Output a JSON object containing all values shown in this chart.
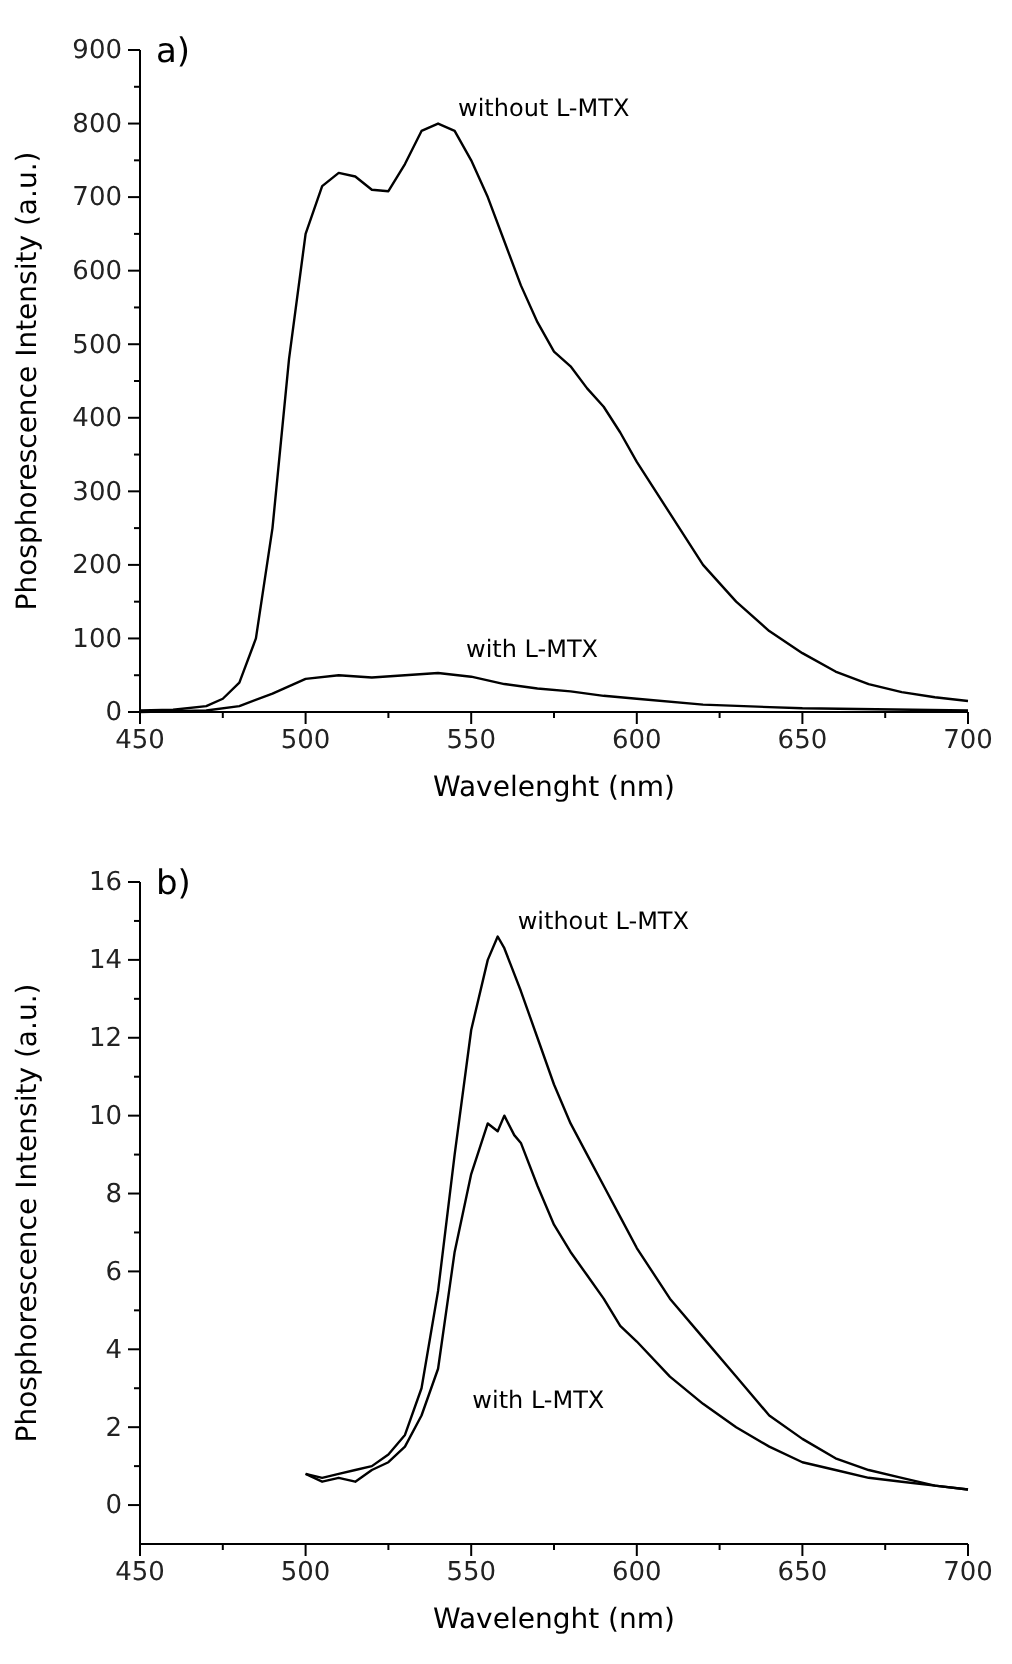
{
  "chart_data": [
    {
      "type": "line",
      "title": "a)",
      "xlabel": "Wavelenght (nm)",
      "ylabel": "Phosphorescence Intensity (a.u.)",
      "xlim": [
        450,
        700
      ],
      "ylim": [
        0,
        900
      ],
      "xticks": [
        450,
        {
          "value": 475,
          "label": null
        },
        500,
        {
          "value": 525,
          "label": null
        },
        550,
        {
          "value": 575,
          "label": null
        },
        600,
        {
          "value": 625,
          "label": null
        },
        650,
        {
          "value": 675,
          "label": null
        },
        700
      ],
      "yticks": [
        0,
        {
          "value": 50,
          "label": null
        },
        100,
        {
          "value": 150,
          "label": null
        },
        200,
        {
          "value": 250,
          "label": null
        },
        300,
        {
          "value": 350,
          "label": null
        },
        400,
        {
          "value": 450,
          "label": null
        },
        500,
        {
          "value": 550,
          "label": null
        },
        600,
        {
          "value": 650,
          "label": null
        },
        700,
        {
          "value": 750,
          "label": null
        },
        800,
        {
          "value": 850,
          "label": null
        },
        900
      ],
      "grid": false,
      "marker": "none",
      "line_style": "solid",
      "series": [
        {
          "name": "without L-MTX",
          "color": "#000000",
          "x": [
            450,
            460,
            470,
            475,
            480,
            485,
            490,
            495,
            500,
            505,
            510,
            515,
            520,
            525,
            530,
            535,
            540,
            545,
            550,
            555,
            560,
            565,
            570,
            575,
            580,
            585,
            590,
            595,
            600,
            610,
            620,
            630,
            640,
            650,
            660,
            670,
            680,
            690,
            700
          ],
          "values": [
            2,
            3,
            8,
            18,
            40,
            100,
            250,
            480,
            650,
            715,
            733,
            728,
            710,
            708,
            745,
            790,
            800,
            790,
            750,
            700,
            640,
            580,
            530,
            490,
            470,
            440,
            415,
            380,
            340,
            270,
            200,
            150,
            110,
            80,
            55,
            38,
            27,
            20,
            15
          ]
        },
        {
          "name": "with L-MTX",
          "color": "#000000",
          "x": [
            450,
            460,
            470,
            480,
            490,
            500,
            510,
            520,
            530,
            540,
            550,
            560,
            570,
            580,
            590,
            600,
            620,
            650,
            700
          ],
          "values": [
            0,
            1,
            2,
            8,
            25,
            45,
            50,
            47,
            50,
            53,
            48,
            38,
            32,
            28,
            22,
            18,
            10,
            5,
            2
          ]
        }
      ]
    },
    {
      "type": "line",
      "title": "b)",
      "xlabel": "Wavelenght (nm)",
      "ylabel": "Phosphorescence Intensity (a.u.)",
      "xlim": [
        450,
        700
      ],
      "ylim": [
        -1,
        16
      ],
      "xticks": [
        450,
        {
          "value": 475,
          "label": null
        },
        500,
        {
          "value": 525,
          "label": null
        },
        550,
        {
          "value": 575,
          "label": null
        },
        600,
        {
          "value": 625,
          "label": null
        },
        650,
        {
          "value": 675,
          "label": null
        },
        700
      ],
      "yticks": [
        0,
        {
          "value": 1,
          "label": null
        },
        2,
        {
          "value": 3,
          "label": null
        },
        4,
        {
          "value": 5,
          "label": null
        },
        6,
        {
          "value": 7,
          "label": null
        },
        8,
        {
          "value": 9,
          "label": null
        },
        10,
        {
          "value": 11,
          "label": null
        },
        12,
        {
          "value": 13,
          "label": null
        },
        14,
        {
          "value": 15,
          "label": null
        },
        16
      ],
      "grid": false,
      "marker": "none",
      "line_style": "solid",
      "series": [
        {
          "name": "without L-MTX",
          "color": "#000000",
          "x": [
            500,
            505,
            510,
            515,
            520,
            525,
            530,
            535,
            540,
            545,
            550,
            555,
            558,
            560,
            565,
            570,
            575,
            580,
            585,
            590,
            595,
            600,
            610,
            620,
            630,
            640,
            650,
            660,
            670,
            680,
            690,
            700
          ],
          "values": [
            0.8,
            0.7,
            0.8,
            0.9,
            1.0,
            1.3,
            1.8,
            3,
            5.5,
            9,
            12.2,
            14,
            14.6,
            14.3,
            13.2,
            12,
            10.8,
            9.8,
            9,
            8.2,
            7.4,
            6.6,
            5.3,
            4.3,
            3.3,
            2.3,
            1.7,
            1.2,
            0.9,
            0.7,
            0.5,
            0.4
          ]
        },
        {
          "name": "with L-MTX",
          "color": "#000000",
          "x": [
            500,
            505,
            510,
            515,
            520,
            525,
            530,
            535,
            540,
            545,
            550,
            555,
            558,
            560,
            563,
            565,
            570,
            575,
            580,
            585,
            590,
            595,
            600,
            610,
            620,
            630,
            640,
            650,
            660,
            670,
            680,
            690,
            700
          ],
          "values": [
            0.8,
            0.6,
            0.7,
            0.6,
            0.9,
            1.1,
            1.5,
            2.3,
            3.5,
            6.5,
            8.5,
            9.8,
            9.6,
            10,
            9.5,
            9.3,
            8.2,
            7.2,
            6.5,
            5.9,
            5.3,
            4.6,
            4.2,
            3.3,
            2.6,
            2.0,
            1.5,
            1.1,
            0.9,
            0.7,
            0.6,
            0.5,
            0.4
          ]
        }
      ]
    }
  ]
}
